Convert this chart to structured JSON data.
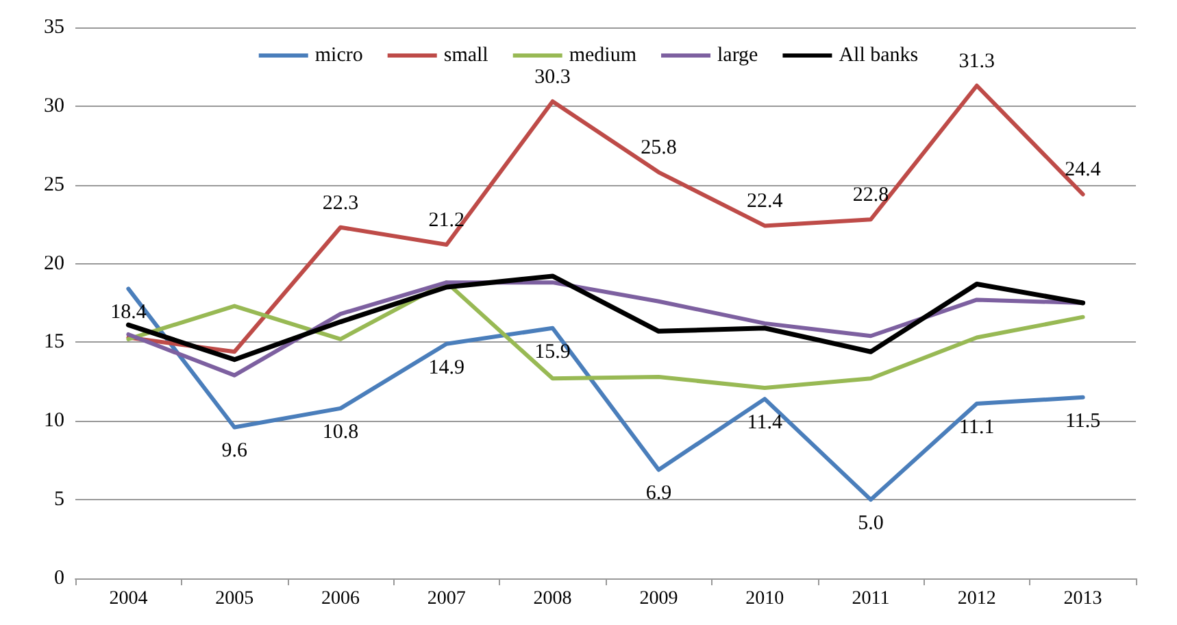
{
  "chart_data": {
    "type": "line",
    "categories": [
      "2004",
      "2005",
      "2006",
      "2007",
      "2008",
      "2009",
      "2010",
      "2011",
      "2012",
      "2013"
    ],
    "series": [
      {
        "name": "micro",
        "color": "#4a7ebb",
        "values": [
          18.4,
          9.6,
          10.8,
          14.9,
          15.9,
          6.9,
          11.4,
          5.0,
          11.1,
          11.5
        ],
        "value_labels": [
          "18.4",
          "9.6",
          "10.8",
          "14.9",
          "15.9",
          "6.9",
          "11.4",
          "5.0",
          "11.1",
          "11.5"
        ]
      },
      {
        "name": "small",
        "color": "#be4b48",
        "values": [
          15.3,
          14.4,
          22.3,
          21.2,
          30.3,
          25.8,
          22.4,
          22.8,
          31.3,
          24.4
        ],
        "value_labels": [
          null,
          null,
          "22.3",
          "21.2",
          "30.3",
          "25.8",
          "22.4",
          "22.8",
          "31.3",
          "24.4"
        ]
      },
      {
        "name": "medium",
        "color": "#98b954",
        "values": [
          15.2,
          17.3,
          15.2,
          18.8,
          12.7,
          12.8,
          12.1,
          12.7,
          15.3,
          16.6
        ]
      },
      {
        "name": "large",
        "color": "#7d60a0",
        "values": [
          15.5,
          12.9,
          16.8,
          18.8,
          18.8,
          17.6,
          16.2,
          15.4,
          17.7,
          17.5
        ]
      },
      {
        "name": "All banks",
        "color": "#000000",
        "values": [
          16.1,
          13.9,
          16.3,
          18.5,
          19.2,
          15.7,
          15.9,
          14.4,
          18.7,
          17.5
        ]
      }
    ],
    "ylim": [
      0,
      35
    ],
    "yticks": [
      0,
      5,
      10,
      15,
      20,
      25,
      30,
      35
    ],
    "grid": "y",
    "legend": "top",
    "marker": "none",
    "line_style": "solid"
  }
}
